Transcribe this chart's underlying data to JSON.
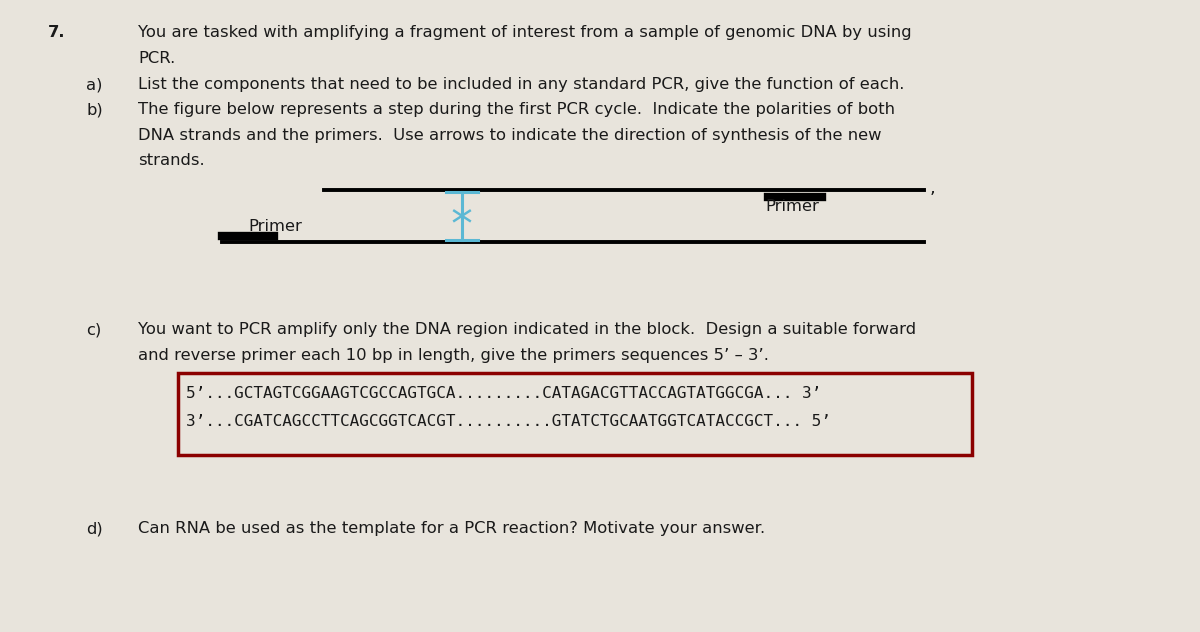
{
  "bg_color": "#e8e4dc",
  "text_color": "#1a1a1a",
  "font_family": "DejaVu Sans",
  "fig_width": 12.0,
  "fig_height": 6.32,
  "question_number": "7.",
  "q7_text_line1": "You are tasked with amplifying a fragment of interest from a sample of genomic DNA by using",
  "q7_text_line2": "PCR.",
  "qa_label": "a)",
  "qa_text": "List the components that need to be included in any standard PCR, give the function of each.",
  "qb_label": "b)",
  "qb_text_line1": "The figure below represents a step during the first PCR cycle.  Indicate the polarities of both",
  "qb_text_line2": "DNA strands and the primers.  Use arrows to indicate the direction of synthesis of the new",
  "qb_text_line3": "strands.",
  "qc_label": "c)",
  "qc_text_line1": "You want to PCR amplify only the DNA region indicated in the block.  Design a suitable forward",
  "qc_text_line2": "and reverse primer each 10 bp in length, give the primers sequences 5’ – 3’.",
  "qd_label": "d)",
  "qd_text": "Can RNA be used as the template for a PCR reaction? Motivate your answer.",
  "dna_line1": "5’...GCTAGTCGGAAGTCGCCAGTGCA.........CATAGACGTTACCAGTATGGCGA... 3’",
  "dna_line2": "3’...CGATCAGCCTTCAGCGGTCACGT..........GTATCTGCAATGGTCATACCGCT... 5’",
  "box_color": "#8B0000",
  "font_size_main": 11.8,
  "font_size_dna": 11.5
}
